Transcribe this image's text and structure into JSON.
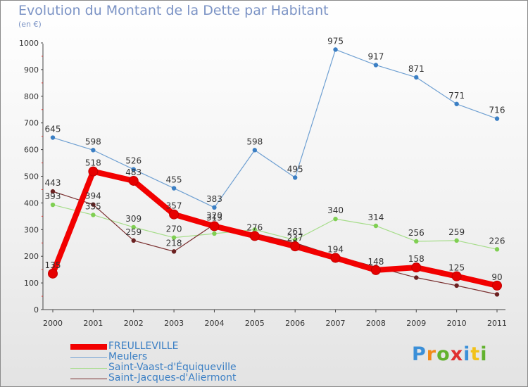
{
  "header": {
    "title": "Evolution du Montant de la Dette par Habitant",
    "subtitle": "(en €)"
  },
  "logo": {
    "letters": [
      "P",
      "r",
      "o",
      "x",
      "i",
      "t",
      "i"
    ],
    "colors": [
      "#3b8fd8",
      "#f28a1a",
      "#62b22e",
      "#e03030",
      "#3b8fd8",
      "#f2c21a",
      "#62b22e"
    ]
  },
  "chart_data": {
    "type": "line",
    "x": [
      "2000",
      "2001",
      "2002",
      "2003",
      "2004",
      "2005",
      "2006",
      "2007",
      "2008",
      "2009",
      "2010",
      "2011"
    ],
    "ylim": [
      0,
      1000
    ],
    "yticks": [
      "0",
      "100",
      "200",
      "300",
      "400",
      "500",
      "600",
      "700",
      "800",
      "900",
      "1000"
    ],
    "grid": false,
    "legend_position": "bottom-left",
    "series": [
      {
        "name": "Meulers",
        "color": "#6fa0d2",
        "marker": "#3b7fc4",
        "values": [
          645,
          598,
          526,
          455,
          383,
          598,
          495,
          975,
          917,
          871,
          771,
          716
        ],
        "labels": [
          "645",
          "598",
          "526",
          "455",
          "383",
          "598",
          "495",
          "975",
          "917",
          "871",
          "771",
          "716"
        ]
      },
      {
        "name": "Saint-Vaast-d'Équiqueville",
        "color": "#a6dd8a",
        "marker": "#7fcf52",
        "values": [
          393,
          355,
          309,
          270,
          285,
          300,
          261,
          340,
          314,
          256,
          259,
          226
        ],
        "labels": [
          "393",
          "355",
          "309",
          "270",
          "",
          "",
          "261",
          "340",
          "314",
          "256",
          "259",
          "226"
        ]
      },
      {
        "name": "Saint-Jacques-d'Aliermont",
        "color": "#7a3030",
        "marker": "#6b2020",
        "values": [
          443,
          394,
          259,
          218,
          320,
          285,
          250,
          201,
          160,
          120,
          90,
          57
        ],
        "labels": [
          "443",
          "394",
          "259",
          "218",
          "320",
          "",
          "",
          "",
          "",
          "",
          "",
          ""
        ]
      },
      {
        "name": "FREULLEVILLE",
        "color": "#f20000",
        "marker": "#e60000",
        "values": [
          135,
          518,
          483,
          357,
          313,
          276,
          237,
          194,
          148,
          158,
          125,
          90
        ],
        "labels": [
          "135",
          "518",
          "483",
          "357",
          "313",
          "276",
          "237",
          "194",
          "148",
          "158",
          "125",
          "90"
        ]
      }
    ],
    "legend": [
      {
        "name": "FREULLEVILLE",
        "color": "#f20000",
        "text_color": "#3b7fc4",
        "thickness": 8
      },
      {
        "name": "Meulers",
        "color": "#6fa0d2",
        "text_color": "#3b7fc4",
        "thickness": 1
      },
      {
        "name": "Saint-Vaast-d'Équiqueville",
        "color": "#a6dd8a",
        "text_color": "#3b7fc4",
        "thickness": 1
      },
      {
        "name": "Saint-Jacques-d'Aliermont",
        "color": "#7a3030",
        "text_color": "#3b7fc4",
        "thickness": 1
      }
    ]
  }
}
